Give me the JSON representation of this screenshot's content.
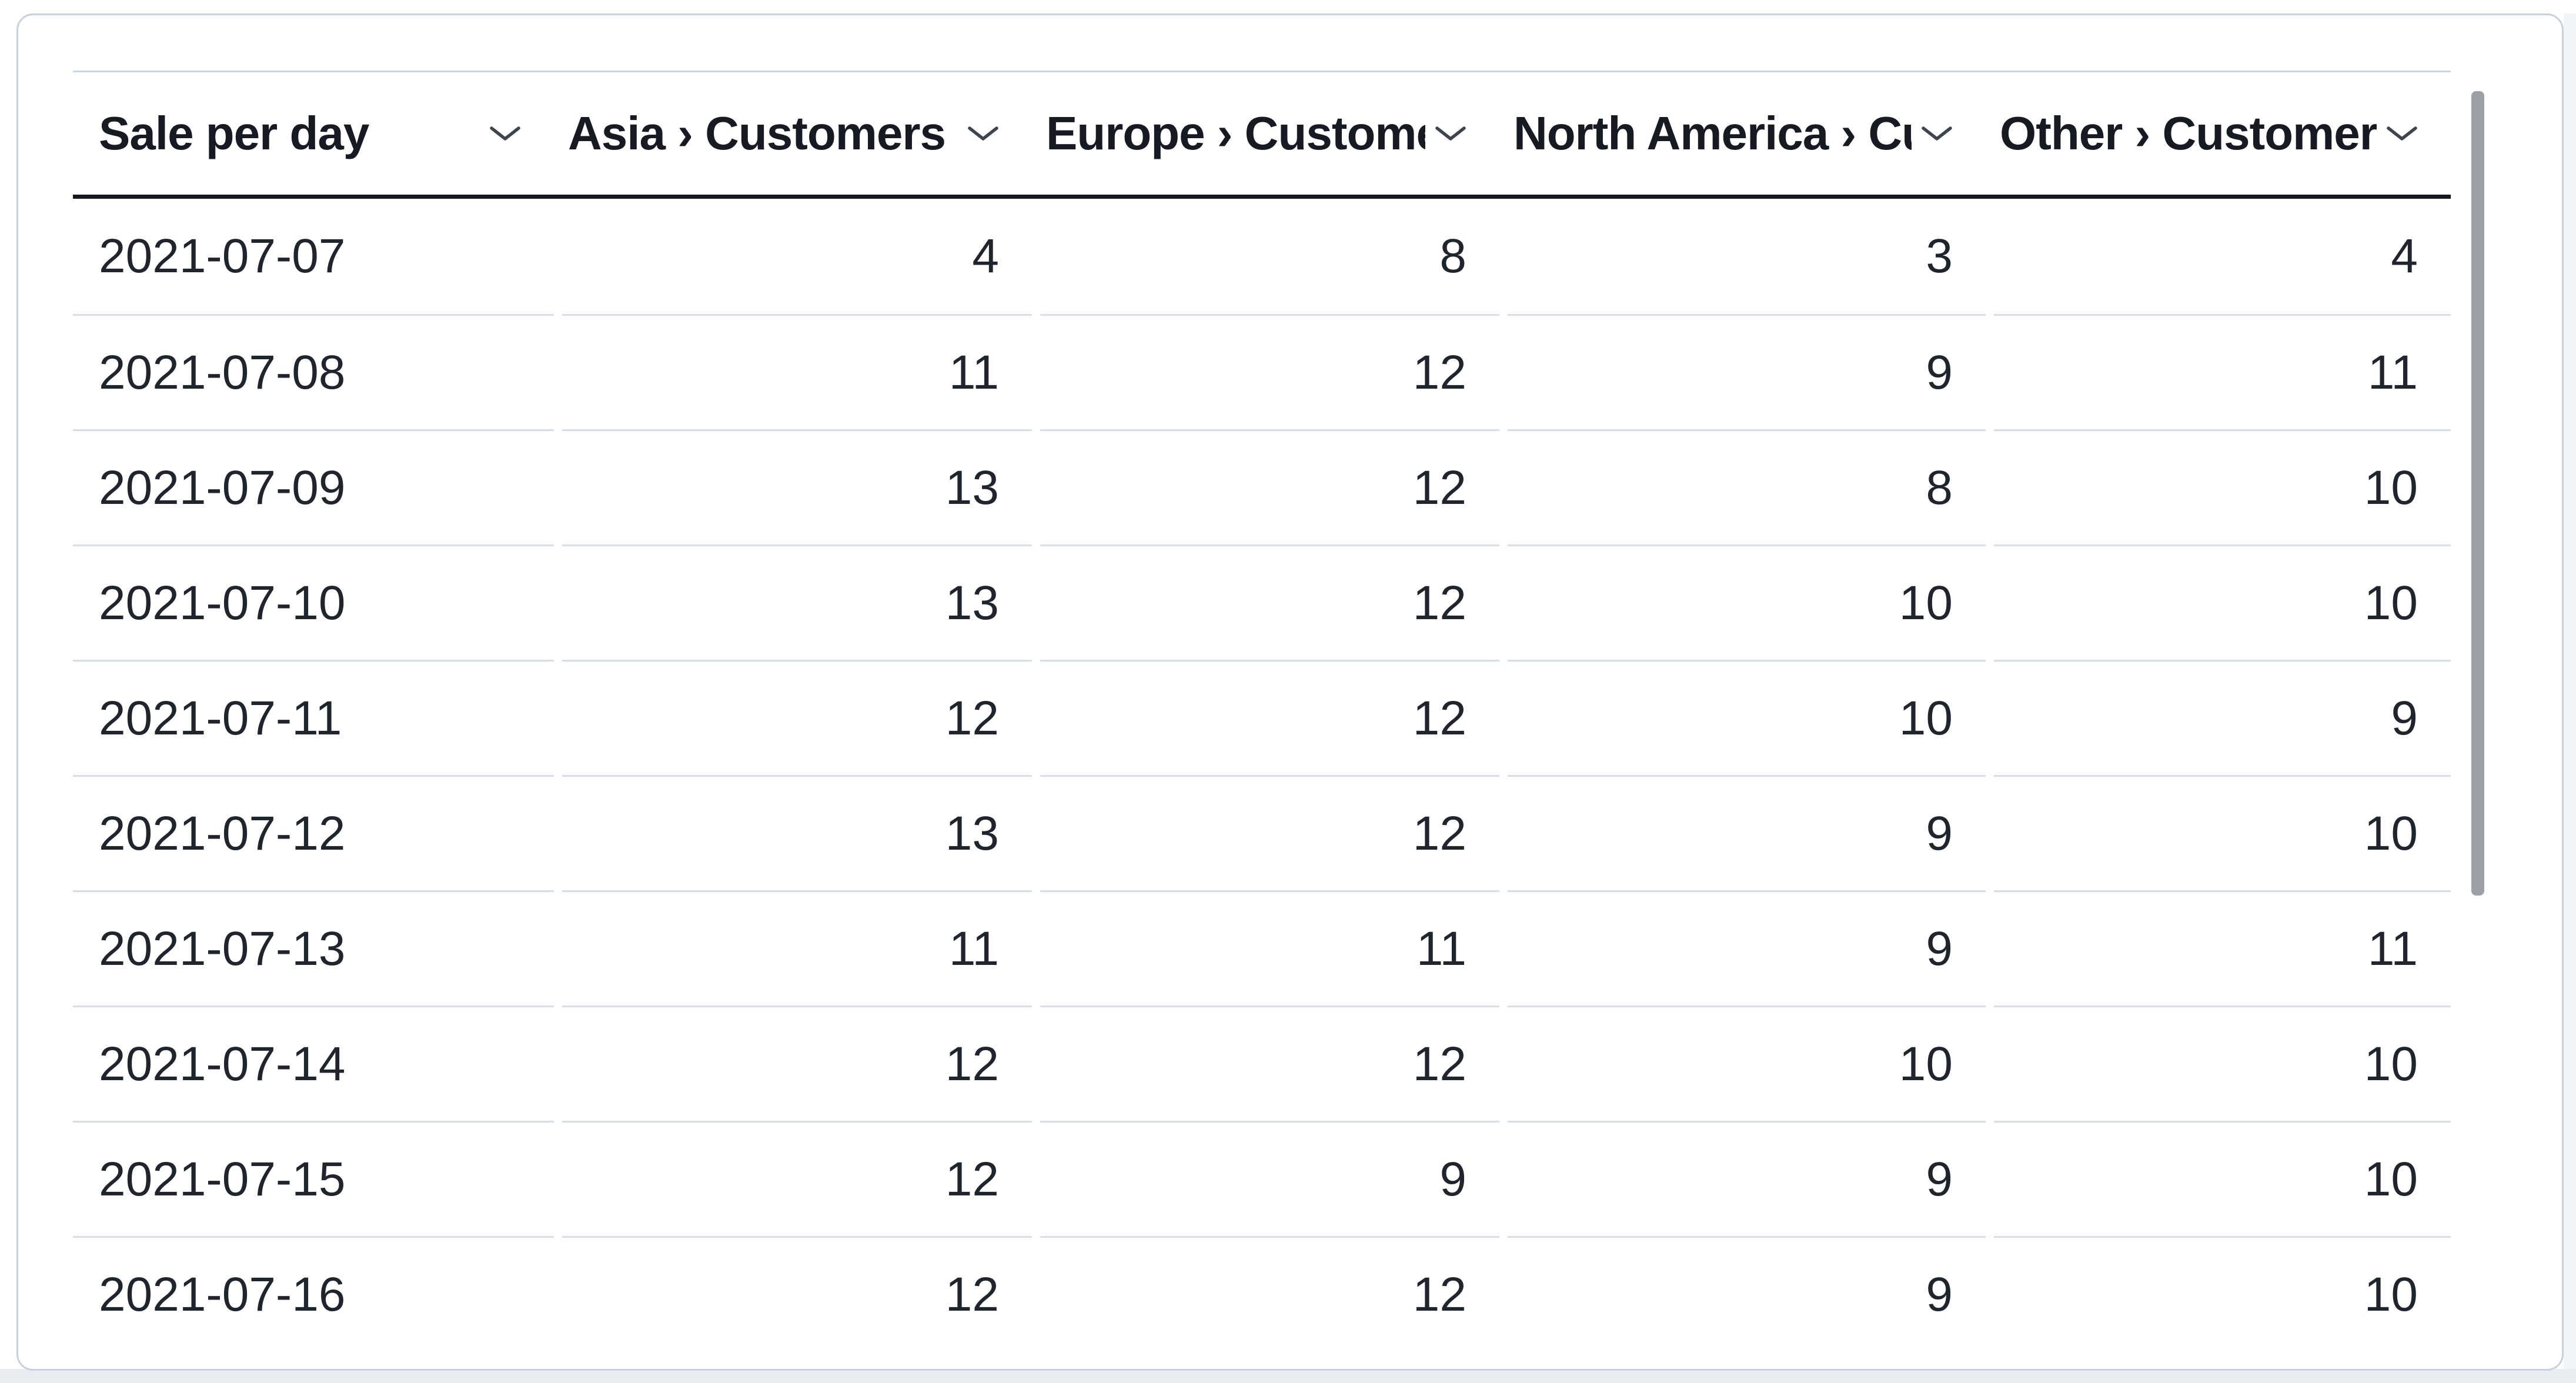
{
  "table": {
    "title": "Sale per day",
    "columns": [
      {
        "label": "Sale per day"
      },
      {
        "label": "Asia › Customers"
      },
      {
        "label": "Europe › Customers"
      },
      {
        "label": "North America › Customers"
      },
      {
        "label": "Other › Customers"
      }
    ],
    "rows": [
      [
        "2021-07-07",
        "4",
        "8",
        "3",
        "4"
      ],
      [
        "2021-07-08",
        "11",
        "12",
        "9",
        "11"
      ],
      [
        "2021-07-09",
        "13",
        "12",
        "8",
        "10"
      ],
      [
        "2021-07-10",
        "13",
        "12",
        "10",
        "10"
      ],
      [
        "2021-07-11",
        "12",
        "12",
        "10",
        "9"
      ],
      [
        "2021-07-12",
        "13",
        "12",
        "9",
        "10"
      ],
      [
        "2021-07-13",
        "11",
        "11",
        "9",
        "11"
      ],
      [
        "2021-07-14",
        "12",
        "12",
        "10",
        "10"
      ],
      [
        "2021-07-15",
        "12",
        "9",
        "9",
        "10"
      ],
      [
        "2021-07-16",
        "12",
        "12",
        "9",
        "10"
      ]
    ]
  },
  "icons": {
    "column_dropdown": "chevron-down-icon"
  },
  "colors": {
    "header_text": "#171a22",
    "body_text": "#20242c",
    "row_divider": "#d8dee8",
    "header_rule": "#15181e",
    "table_top_border": "#ccd5e2",
    "card_border": "#c7d0dc",
    "scrollbar_thumb": "#9ba1a7",
    "outer_margin_bottom": "#e9edf1",
    "outer_margin_right": "#f1f4f8"
  }
}
